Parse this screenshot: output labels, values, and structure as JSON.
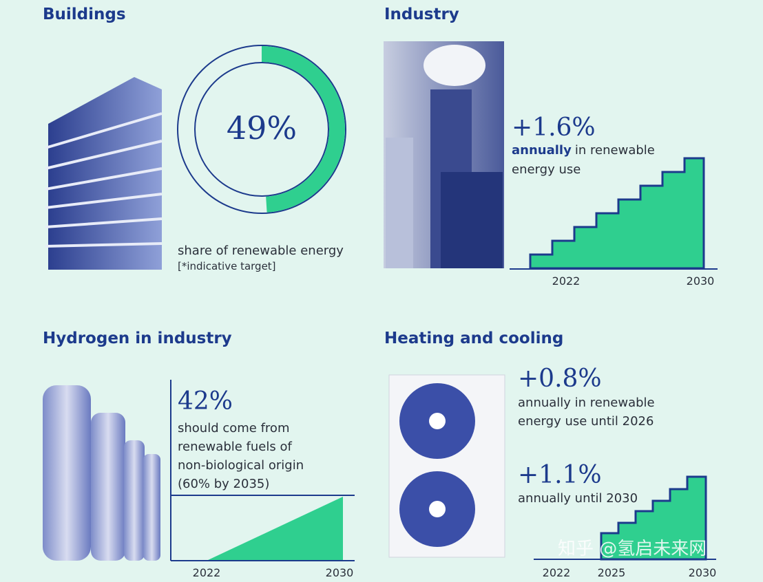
{
  "buildings": {
    "title": "Buildings",
    "share": {
      "value": 49,
      "label": "49%"
    },
    "caption": "share of renewable energy",
    "note": "[*indicative target]"
  },
  "industry": {
    "title": "Industry",
    "headline": "+1.6%",
    "emphasis": "annually",
    "line1": "in renewable",
    "line2": "energy use",
    "axis": [
      "2022",
      "2030"
    ]
  },
  "hydrogen": {
    "title": "Hydrogen in industry",
    "headline": "42%",
    "lines": [
      "should come from",
      "renewable fuels of",
      "non-biological origin",
      "(60% by 2035)"
    ],
    "axis": [
      "2022",
      "2030"
    ]
  },
  "heating": {
    "title": "Heating and cooling",
    "headline1": "+0.8%",
    "lines1": [
      "annually in renewable",
      "energy use until 2026"
    ],
    "headline2": "+1.1%",
    "lines2": [
      "annually until 2030"
    ],
    "axis": [
      "2022",
      "2025",
      "2030"
    ]
  },
  "watermark": "知乎 @氢启未来网"
}
